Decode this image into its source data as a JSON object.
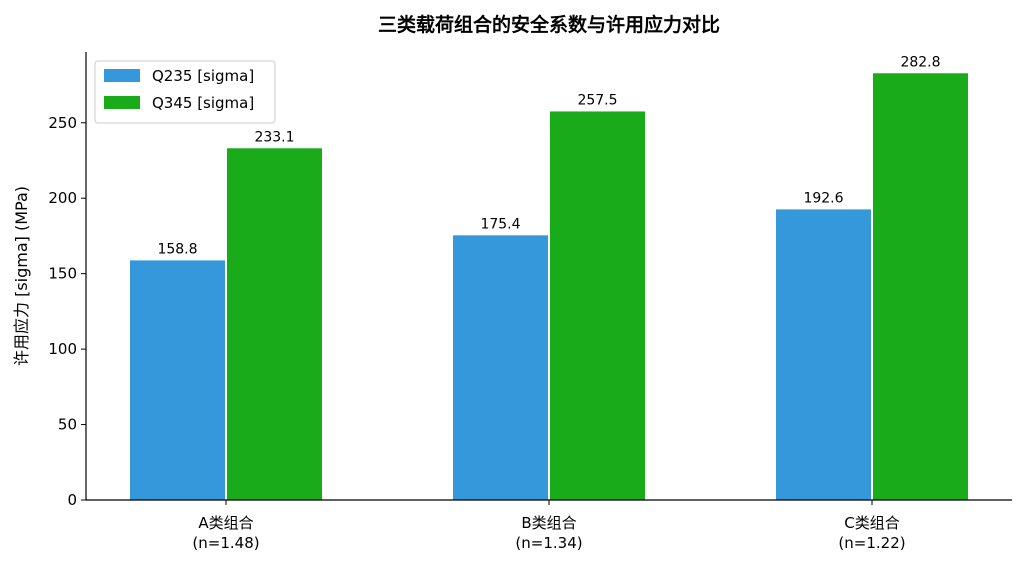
{
  "chart_data": {
    "type": "bar",
    "title": "三类载荷组合的安全系数与许用应力对比",
    "xlabel": "",
    "ylabel": "许用应力 [sigma] (MPa)",
    "categories": [
      [
        "A类组合",
        "(n=1.48)"
      ],
      [
        "B类组合",
        "(n=1.34)"
      ],
      [
        "C类组合",
        "(n=1.22)"
      ]
    ],
    "series": [
      {
        "name": "Q235 [sigma]",
        "color": "#3498db",
        "values": [
          158.8,
          175.4,
          192.6
        ],
        "labels": [
          "158.8",
          "175.4",
          "192.6"
        ]
      },
      {
        "name": "Q345 [sigma]",
        "color": "#1aab1a",
        "values": [
          233.1,
          257.5,
          282.8
        ],
        "labels": [
          "233.1",
          "257.5",
          "282.8"
        ]
      }
    ],
    "yticks": [
      0,
      50,
      100,
      150,
      200,
      250
    ],
    "ylim": [
      0,
      296.9
    ],
    "grid": false,
    "legend_position": "top-left"
  }
}
